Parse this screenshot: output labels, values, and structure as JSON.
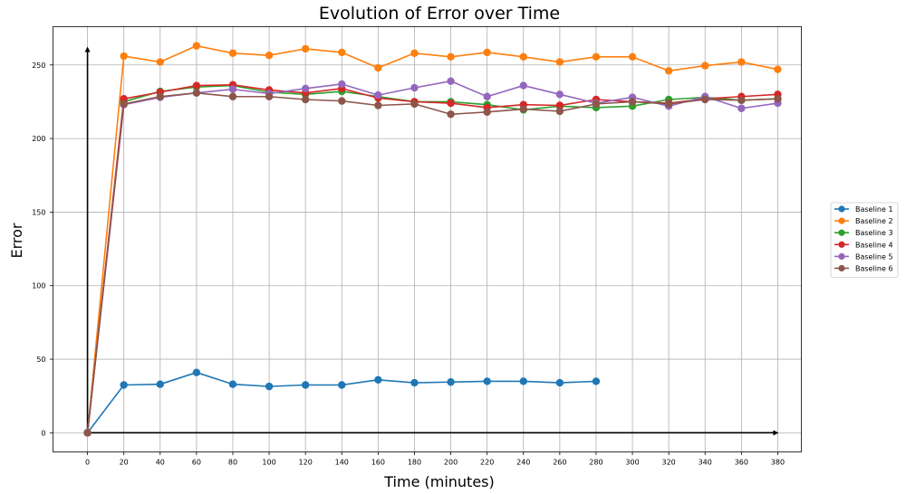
{
  "chart_data": {
    "type": "line",
    "title": "Evolution of Error over Time",
    "xlabel": "Time (minutes)",
    "ylabel": "Error",
    "xlim": [
      -19,
      393
    ],
    "ylim": [
      -13,
      276
    ],
    "xticks": [
      0,
      20,
      40,
      60,
      80,
      100,
      120,
      140,
      160,
      180,
      200,
      220,
      240,
      260,
      280,
      300,
      320,
      340,
      360,
      380
    ],
    "yticks": [
      0,
      50,
      100,
      150,
      200,
      250
    ],
    "grid": true,
    "legend_position": "center-right",
    "x": [
      0,
      20,
      40,
      60,
      80,
      100,
      120,
      140,
      160,
      180,
      200,
      220,
      240,
      260,
      280,
      300,
      320,
      340,
      360,
      380
    ],
    "series": [
      {
        "name": "Baseline 1",
        "color": "#1f77b4",
        "values": [
          0,
          32.5,
          33,
          41,
          33,
          31.5,
          32.5,
          32.5,
          36,
          34,
          34.5,
          35,
          35,
          34,
          35,
          null,
          null,
          null,
          null,
          null
        ]
      },
      {
        "name": "Baseline 2",
        "color": "#ff7f0e",
        "values": [
          0,
          256,
          252,
          263,
          258,
          256.5,
          261,
          258.5,
          248,
          258,
          255.5,
          258.5,
          255.5,
          252,
          255.5,
          255.5,
          246,
          249.5,
          252,
          247
        ]
      },
      {
        "name": "Baseline 3",
        "color": "#2ca02c",
        "values": [
          0,
          225,
          232,
          235,
          236,
          231.5,
          230,
          232,
          228.5,
          225,
          225,
          223,
          219.5,
          222,
          221,
          222,
          226.5,
          228,
          226,
          227
        ]
      },
      {
        "name": "Baseline 4",
        "color": "#d62728",
        "values": [
          0,
          227,
          231.5,
          236,
          236.5,
          233,
          231,
          234,
          227.5,
          225,
          224,
          221,
          223,
          222.5,
          226.5,
          225,
          224,
          227,
          228.5,
          230
        ]
      },
      {
        "name": "Baseline 5",
        "color": "#9467bd",
        "values": [
          0,
          223,
          228,
          231,
          233.5,
          230.5,
          234,
          237,
          229.5,
          234.5,
          239,
          228.5,
          236,
          230,
          224,
          228,
          222,
          228.5,
          220.5,
          224
        ]
      },
      {
        "name": "Baseline 6",
        "color": "#8c564b",
        "values": [
          0,
          223.5,
          228.5,
          231,
          228.5,
          228.5,
          226.5,
          225.5,
          222.5,
          223.5,
          216.5,
          218,
          220,
          218.5,
          223.5,
          225,
          223.5,
          226.5,
          226,
          227
        ]
      }
    ]
  }
}
